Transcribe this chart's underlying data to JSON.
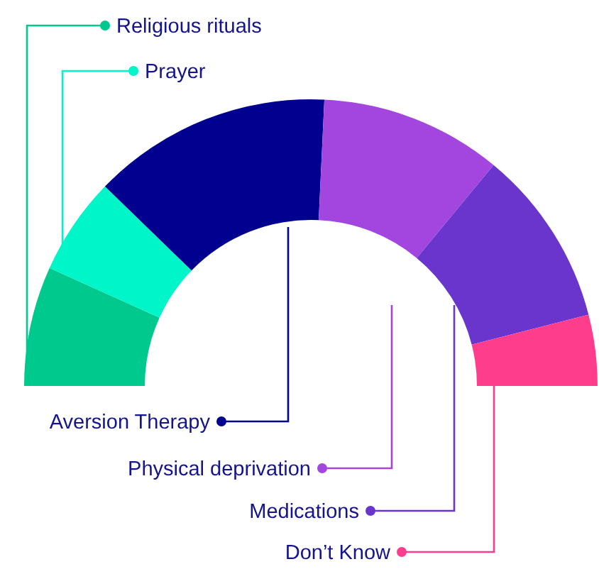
{
  "chart_data": {
    "type": "donut",
    "categories": [
      "Religious rituals",
      "Prayer",
      "Aversion Therapy",
      "Physical deprivation",
      "Medications",
      "Don’t Know"
    ],
    "values": [
      13.5,
      11,
      27,
      20.5,
      20,
      8
    ],
    "colors": [
      "#00c98d",
      "#00f5c8",
      "#01008f",
      "#a346e0",
      "#6a35cc",
      "#ff3d8d"
    ],
    "legend": "bottom left"
  }
}
